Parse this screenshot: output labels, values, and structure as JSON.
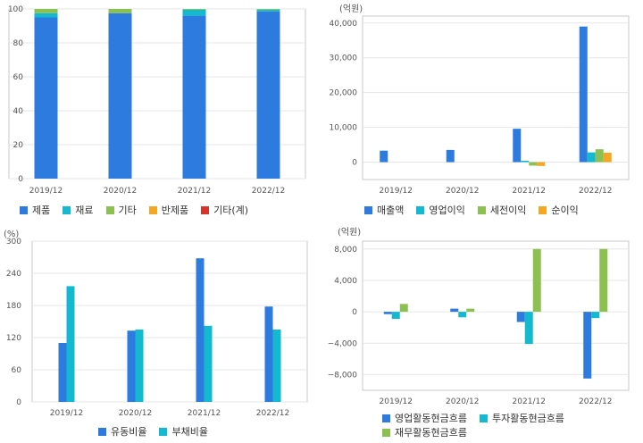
{
  "chart_data": [
    {
      "id": "product-mix",
      "type": "bar",
      "stacked": true,
      "categories": [
        "2019/12",
        "2020/12",
        "2021/12",
        "2022/12"
      ],
      "ylim": [
        0,
        100
      ],
      "yticks": [
        0,
        20,
        40,
        60,
        80,
        100
      ],
      "unit": "",
      "grid": true,
      "legend_position": "bottom",
      "series": [
        {
          "name": "제품",
          "color": "#2e7be0",
          "values": [
            95,
            97.5,
            96,
            98.5
          ]
        },
        {
          "name": "재료",
          "color": "#13b9cf",
          "values": [
            2.5,
            0,
            3.5,
            1
          ]
        },
        {
          "name": "기타",
          "color": "#8cc152",
          "values": [
            2.5,
            2.5,
            0.5,
            0.5
          ]
        },
        {
          "name": "반제품",
          "color": "#f5a623",
          "values": [
            0,
            0,
            0,
            0
          ]
        },
        {
          "name": "기타(계)",
          "color": "#d9342b",
          "values": [
            0,
            0,
            0,
            0
          ]
        }
      ]
    },
    {
      "id": "income",
      "type": "bar",
      "categories": [
        "2019/12",
        "2020/12",
        "2021/12",
        "2022/12"
      ],
      "ylim": [
        -5000,
        42000
      ],
      "yticks": [
        0,
        10000,
        20000,
        30000,
        40000
      ],
      "ytick_labels": [
        "0",
        "10,000",
        "20,000",
        "30,000",
        "40,000"
      ],
      "unit": "(억원)",
      "grid": true,
      "legend_position": "bottom",
      "series": [
        {
          "name": "매출액",
          "color": "#2e7be0",
          "values": [
            3300,
            3500,
            9600,
            39000
          ]
        },
        {
          "name": "영업이익",
          "color": "#13b9cf",
          "values": [
            0,
            0,
            400,
            2800
          ]
        },
        {
          "name": "세전이익",
          "color": "#8cc152",
          "values": [
            0,
            0,
            -1000,
            3700
          ]
        },
        {
          "name": "순이익",
          "color": "#f5a623",
          "values": [
            0,
            0,
            -1100,
            2700
          ]
        }
      ]
    },
    {
      "id": "ratios",
      "type": "bar",
      "categories": [
        "2019/12",
        "2020/12",
        "2021/12",
        "2022/12"
      ],
      "ylim": [
        0,
        300
      ],
      "yticks": [
        0,
        60,
        120,
        180,
        240,
        300
      ],
      "unit": "(%)",
      "grid": true,
      "legend_position": "bottom",
      "series": [
        {
          "name": "유동비율",
          "color": "#2e7be0",
          "values": [
            110,
            133,
            268,
            178
          ]
        },
        {
          "name": "부채비율",
          "color": "#13b9cf",
          "values": [
            216,
            135,
            142,
            135
          ]
        }
      ]
    },
    {
      "id": "cashflow",
      "type": "bar",
      "categories": [
        "2019/12",
        "2020/12",
        "2021/12",
        "2022/12"
      ],
      "ylim": [
        -10000,
        9000
      ],
      "yticks": [
        -8000,
        -4000,
        0,
        4000,
        8000
      ],
      "ytick_labels": [
        "−8,000",
        "−4,000",
        "0",
        "4,000",
        "8,000"
      ],
      "unit": "(억원)",
      "grid": true,
      "legend_position": "bottom",
      "series": [
        {
          "name": "영업활동현금흐름",
          "color": "#2e7be0",
          "values": [
            -300,
            400,
            -1300,
            -8500
          ]
        },
        {
          "name": "투자활동현금흐름",
          "color": "#13b9cf",
          "values": [
            -900,
            -700,
            -4100,
            -800
          ]
        },
        {
          "name": "재무활동현금흐름",
          "color": "#8cc152",
          "values": [
            1000,
            400,
            8000,
            8000
          ]
        }
      ]
    }
  ]
}
